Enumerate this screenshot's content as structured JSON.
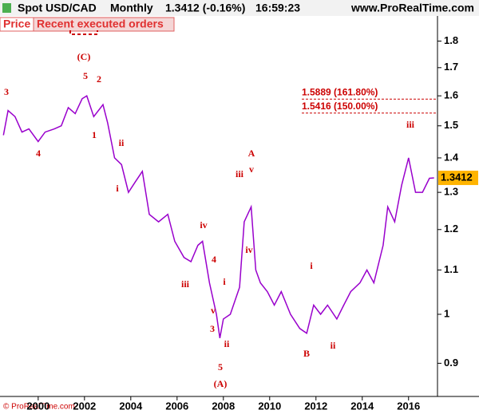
{
  "header": {
    "symbol": "Spot USD/CAD",
    "period": "Monthly",
    "quote": "1.3412 (-0.16%)",
    "time": "16:59:23",
    "site": "www.ProRealTime.com"
  },
  "tabs": [
    "Price",
    "Recent executed orders"
  ],
  "footer": "© ProRealTime.com",
  "chart_data": {
    "type": "line",
    "log_scale": true,
    "x": [
      1998.5,
      1998.7,
      1999.0,
      1999.3,
      1999.6,
      2000.0,
      2000.3,
      2000.7,
      2001.0,
      2001.3,
      2001.6,
      2001.9,
      2002.1,
      2002.4,
      2002.8,
      2003.0,
      2003.3,
      2003.6,
      2003.9,
      2004.2,
      2004.5,
      2004.8,
      2005.2,
      2005.6,
      2005.9,
      2006.3,
      2006.6,
      2006.9,
      2007.1,
      2007.4,
      2007.7,
      2007.85,
      2008.0,
      2008.3,
      2008.7,
      2008.9,
      2009.2,
      2009.4,
      2009.6,
      2009.9,
      2010.2,
      2010.5,
      2010.9,
      2011.3,
      2011.6,
      2011.9,
      2012.2,
      2012.5,
      2012.9,
      2013.2,
      2013.5,
      2013.9,
      2014.2,
      2014.5,
      2014.9,
      2015.1,
      2015.4,
      2015.7,
      2016.0,
      2016.3,
      2016.6,
      2016.9,
      2017.1
    ],
    "series": [
      {
        "name": "Spot USD/CAD",
        "color": "#9900cc",
        "values": [
          1.47,
          1.55,
          1.53,
          1.48,
          1.49,
          1.45,
          1.48,
          1.49,
          1.5,
          1.56,
          1.54,
          1.59,
          1.6,
          1.53,
          1.57,
          1.51,
          1.4,
          1.38,
          1.3,
          1.33,
          1.36,
          1.24,
          1.22,
          1.24,
          1.17,
          1.13,
          1.12,
          1.16,
          1.17,
          1.07,
          1.0,
          0.95,
          0.99,
          1.0,
          1.06,
          1.22,
          1.26,
          1.1,
          1.07,
          1.05,
          1.02,
          1.05,
          1.0,
          0.97,
          0.96,
          1.02,
          1.0,
          1.02,
          0.99,
          1.02,
          1.05,
          1.07,
          1.1,
          1.07,
          1.16,
          1.26,
          1.22,
          1.32,
          1.4,
          1.3,
          1.3,
          1.34,
          1.3412
        ]
      }
    ],
    "xlim": [
      1998.35,
      2017.25
    ],
    "xticks": [
      2000,
      2002,
      2004,
      2006,
      2008,
      2010,
      2012,
      2014,
      2016
    ],
    "ylim": [
      0.838,
      1.9
    ],
    "yticks": [
      0.9,
      1,
      1.1,
      1.2,
      1.3,
      1.4,
      1.5,
      1.6,
      1.7,
      1.8
    ],
    "last_price": 1.3412,
    "levels": [
      {
        "value": 1.5889,
        "label": "1.5889 (161.80%)"
      },
      {
        "value": 1.5416,
        "label": "1.5416 (150.00%)"
      }
    ],
    "wave_labels": [
      "3",
      "(C)",
      "5",
      "2",
      "1",
      "4",
      "ii",
      "i",
      "iv",
      "4",
      "iii",
      "i",
      "v",
      "3",
      "ii",
      "5",
      "(A)",
      "A",
      "v",
      "iii",
      "iv",
      "i",
      "B",
      "ii",
      "iii"
    ]
  }
}
